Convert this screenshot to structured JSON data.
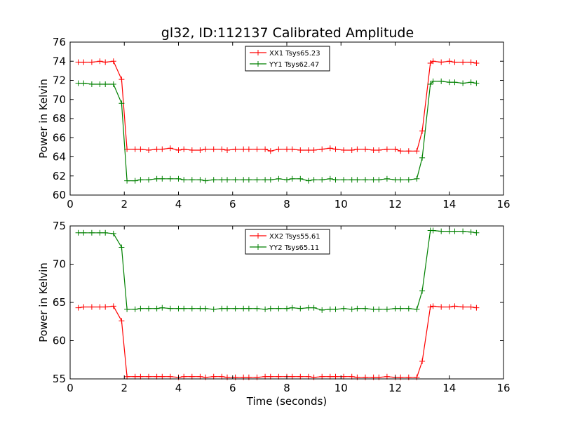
{
  "title": "gl32, ID:112137 Calibrated Amplitude",
  "colors": {
    "red": "#ff0000",
    "green": "#008000"
  },
  "chart_data": [
    {
      "type": "line",
      "ylabel": "Power in Kelvin",
      "xlabel": "",
      "xlim": [
        0,
        16
      ],
      "ylim": [
        60,
        76
      ],
      "xticks": [
        0,
        2,
        4,
        6,
        8,
        10,
        12,
        14,
        16
      ],
      "yticks": [
        60,
        62,
        64,
        66,
        68,
        70,
        72,
        74,
        76
      ],
      "legend_position": "upper center",
      "x": [
        0.3,
        0.5,
        0.8,
        1.1,
        1.3,
        1.6,
        1.9,
        2.1,
        2.4,
        2.6,
        2.9,
        3.2,
        3.4,
        3.7,
        4.0,
        4.2,
        4.5,
        4.8,
        5.0,
        5.3,
        5.6,
        5.8,
        6.1,
        6.4,
        6.6,
        6.9,
        7.2,
        7.4,
        7.7,
        8.0,
        8.2,
        8.5,
        8.8,
        9.0,
        9.3,
        9.6,
        9.8,
        10.1,
        10.4,
        10.6,
        10.9,
        11.2,
        11.4,
        11.7,
        12.0,
        12.2,
        12.5,
        12.8,
        13.0,
        13.3,
        13.4,
        13.7,
        14.0,
        14.2,
        14.5,
        14.8,
        15.0
      ],
      "series": [
        {
          "name": "XX1 Tsys65.23",
          "color": "#ff0000",
          "values": [
            73.9,
            73.9,
            73.9,
            74.0,
            73.9,
            74.0,
            72.1,
            64.8,
            64.8,
            64.8,
            64.7,
            64.8,
            64.8,
            64.9,
            64.7,
            64.8,
            64.7,
            64.7,
            64.8,
            64.8,
            64.8,
            64.7,
            64.8,
            64.8,
            64.8,
            64.8,
            64.8,
            64.6,
            64.8,
            64.8,
            64.8,
            64.7,
            64.7,
            64.7,
            64.8,
            64.9,
            64.8,
            64.7,
            64.7,
            64.8,
            64.8,
            64.7,
            64.7,
            64.8,
            64.8,
            64.6,
            64.6,
            64.6,
            66.7,
            73.8,
            74.0,
            73.9,
            74.0,
            73.9,
            73.9,
            73.9,
            73.8
          ]
        },
        {
          "name": "YY1 Tsys62.47",
          "color": "#008000",
          "values": [
            71.7,
            71.7,
            71.6,
            71.6,
            71.6,
            71.6,
            69.6,
            61.5,
            61.5,
            61.6,
            61.6,
            61.7,
            61.7,
            61.7,
            61.7,
            61.6,
            61.6,
            61.6,
            61.5,
            61.6,
            61.6,
            61.6,
            61.6,
            61.6,
            61.6,
            61.6,
            61.6,
            61.6,
            61.7,
            61.6,
            61.7,
            61.7,
            61.5,
            61.6,
            61.6,
            61.7,
            61.6,
            61.6,
            61.6,
            61.6,
            61.6,
            61.6,
            61.6,
            61.7,
            61.6,
            61.6,
            61.6,
            61.7,
            63.9,
            71.6,
            71.9,
            71.9,
            71.8,
            71.8,
            71.7,
            71.8,
            71.7
          ]
        }
      ]
    },
    {
      "type": "line",
      "ylabel": "Power in Kelvin",
      "xlabel": "Time (seconds)",
      "xlim": [
        0,
        16
      ],
      "ylim": [
        55,
        75
      ],
      "xticks": [
        0,
        2,
        4,
        6,
        8,
        10,
        12,
        14,
        16
      ],
      "yticks": [
        55,
        60,
        65,
        70,
        75
      ],
      "legend_position": "upper center",
      "x": [
        0.3,
        0.5,
        0.8,
        1.1,
        1.3,
        1.6,
        1.9,
        2.1,
        2.4,
        2.6,
        2.9,
        3.2,
        3.4,
        3.7,
        4.0,
        4.2,
        4.5,
        4.8,
        5.0,
        5.3,
        5.6,
        5.8,
        6.1,
        6.4,
        6.6,
        6.9,
        7.2,
        7.4,
        7.7,
        8.0,
        8.2,
        8.5,
        8.8,
        9.0,
        9.3,
        9.6,
        9.8,
        10.1,
        10.4,
        10.6,
        10.9,
        11.2,
        11.4,
        11.7,
        12.0,
        12.2,
        12.5,
        12.8,
        13.0,
        13.3,
        13.4,
        13.7,
        14.0,
        14.2,
        14.5,
        14.8,
        15.0
      ],
      "series": [
        {
          "name": "XX2 Tsys55.61",
          "color": "#ff0000",
          "values": [
            64.3,
            64.4,
            64.4,
            64.4,
            64.4,
            64.5,
            62.6,
            55.3,
            55.3,
            55.3,
            55.3,
            55.3,
            55.3,
            55.3,
            55.2,
            55.3,
            55.3,
            55.3,
            55.2,
            55.3,
            55.3,
            55.2,
            55.2,
            55.2,
            55.2,
            55.2,
            55.3,
            55.3,
            55.3,
            55.3,
            55.3,
            55.3,
            55.3,
            55.2,
            55.3,
            55.3,
            55.3,
            55.3,
            55.3,
            55.2,
            55.2,
            55.2,
            55.2,
            55.3,
            55.2,
            55.2,
            55.2,
            55.2,
            57.3,
            64.4,
            64.5,
            64.4,
            64.4,
            64.5,
            64.4,
            64.4,
            64.3
          ]
        },
        {
          "name": "YY2 Tsys65.11",
          "color": "#008000",
          "values": [
            74.1,
            74.1,
            74.1,
            74.1,
            74.1,
            74.0,
            72.2,
            64.1,
            64.1,
            64.2,
            64.2,
            64.2,
            64.3,
            64.2,
            64.2,
            64.2,
            64.2,
            64.2,
            64.2,
            64.1,
            64.2,
            64.2,
            64.2,
            64.2,
            64.2,
            64.2,
            64.1,
            64.2,
            64.2,
            64.2,
            64.3,
            64.2,
            64.3,
            64.3,
            64.0,
            64.1,
            64.1,
            64.2,
            64.1,
            64.2,
            64.2,
            64.1,
            64.1,
            64.1,
            64.2,
            64.2,
            64.2,
            64.1,
            66.5,
            74.4,
            74.4,
            74.3,
            74.3,
            74.3,
            74.3,
            74.2,
            74.1
          ]
        }
      ]
    }
  ]
}
